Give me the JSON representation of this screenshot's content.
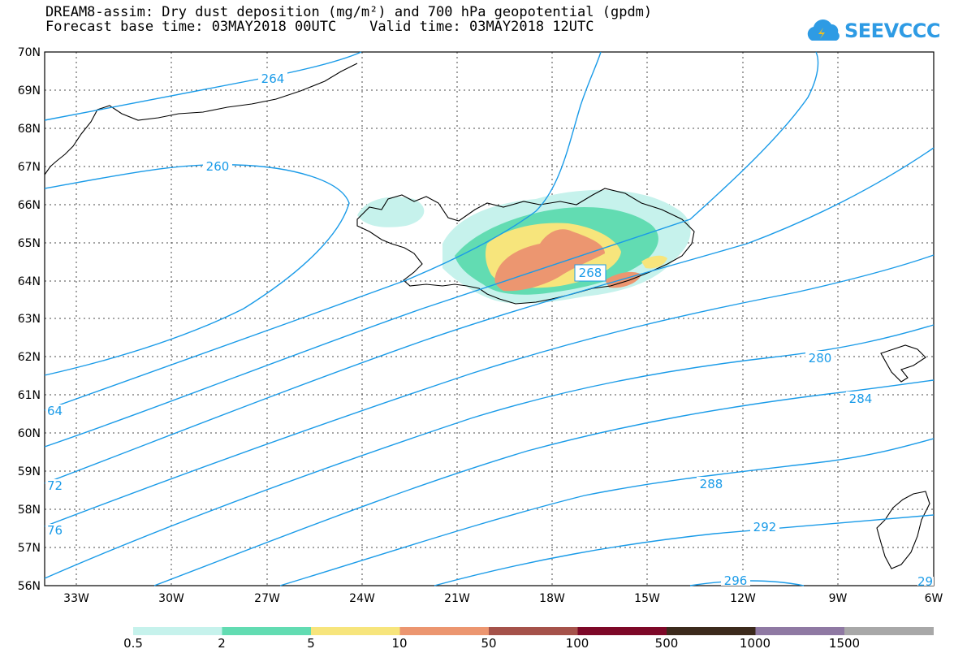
{
  "title": {
    "line1": "DREAM8-assim: Dry dust deposition (mg/m²) and 700 hPa geopotential (gpdm)",
    "line2": "Forecast base time: 03MAY2018 00UTC    Valid time: 03MAY2018 12UTC"
  },
  "logo": {
    "text": "SEEVCCC",
    "icon": "cloud-icon"
  },
  "map": {
    "lat_range": [
      56,
      70
    ],
    "lon_range": [
      -34,
      -6
    ],
    "lat_labels": [
      "70N",
      "69N",
      "68N",
      "67N",
      "66N",
      "65N",
      "64N",
      "63N",
      "62N",
      "61N",
      "60N",
      "59N",
      "58N",
      "57N",
      "56N"
    ],
    "lon_labels": [
      "33W",
      "30W",
      "27W",
      "24W",
      "21W",
      "18W",
      "15W",
      "12W",
      "9W",
      "6W"
    ],
    "grid": true,
    "contour_color": "#1a9be8",
    "contour_labels": [
      {
        "text": "264"
      },
      {
        "text": "260"
      },
      {
        "text": "268"
      },
      {
        "text": "280"
      },
      {
        "text": "284"
      },
      {
        "text": "288"
      },
      {
        "text": "292"
      },
      {
        "text": "296"
      },
      {
        "text": "64"
      },
      {
        "text": "72"
      },
      {
        "text": "76"
      },
      {
        "text": "29"
      }
    ]
  },
  "colorbar": {
    "colors": [
      "#c6f2ec",
      "#62dcb2",
      "#f7e57c",
      "#ec9670",
      "#a5524a",
      "#7d0828",
      "#3c2a1c",
      "#8f79a3",
      "#a8a8a8"
    ],
    "labels": [
      "0.5",
      "2",
      "5",
      "10",
      "50",
      "100",
      "500",
      "1000",
      "1500"
    ]
  }
}
